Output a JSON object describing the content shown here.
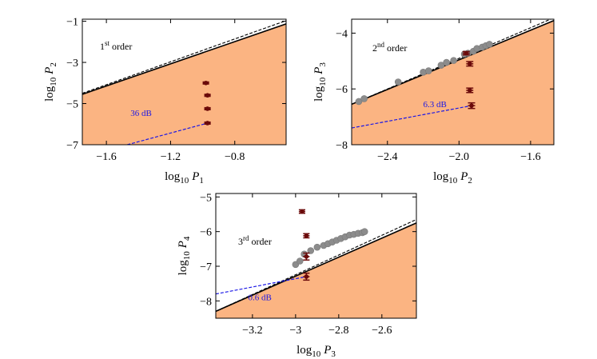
{
  "colors": {
    "region": "#fbb482",
    "bound_solid": "#000000",
    "bound_dashed": "#000000",
    "annotation": "#1a17e6",
    "exp_marker": "#6b0a0a",
    "sim_marker": "#8c8c8c"
  },
  "chart_data": [
    {
      "type": "scatter",
      "title": "1st order",
      "order_num": "1",
      "order_sup": "st",
      "order_word": "order",
      "xlabel_prefix": "log",
      "xlabel_sub": "10",
      "xlabel_var": "P",
      "xlabel_var_sub": "1",
      "ylabel_prefix": "log",
      "ylabel_sub": "10",
      "ylabel_var": "P",
      "ylabel_var_sub": "2",
      "xlim": [
        -1.75,
        -0.48
      ],
      "ylim": [
        -7,
        -0.9
      ],
      "xticks": [
        -1.6,
        -1.2,
        -0.8
      ],
      "xtick_labels": [
        "−1.6",
        "−1.2",
        "−0.8"
      ],
      "yticks": [
        -7,
        -5,
        -3,
        -1
      ],
      "ytick_labels": [
        "−7",
        "−5",
        "−3",
        "−1"
      ],
      "allowed_region_boundary": {
        "x": [
          -1.75,
          -0.48
        ],
        "y": [
          -4.55,
          -1.13
        ]
      },
      "dashed_bound": {
        "x": [
          -1.75,
          -0.48
        ],
        "y": [
          -4.5,
          -0.97
        ]
      },
      "experimental_points": [
        {
          "x": -0.98,
          "y": -4.0,
          "xerr": 0.02,
          "yerr": 0.05
        },
        {
          "x": -0.97,
          "y": -4.6,
          "xerr": 0.02,
          "yerr": 0.05
        },
        {
          "x": -0.97,
          "y": -5.25,
          "xerr": 0.02,
          "yerr": 0.05
        },
        {
          "x": -0.97,
          "y": -5.95,
          "xerr": 0.02,
          "yerr": 0.05
        }
      ],
      "simulated_points": [],
      "gap_line": {
        "x": [
          -1.47,
          -0.97
        ],
        "y": [
          -7.0,
          -5.95
        ]
      },
      "gap_label": "36 dB",
      "gap_label_pos": [
        -1.45,
        -5.6
      ]
    },
    {
      "type": "scatter",
      "title": "2nd order",
      "order_num": "2",
      "order_sup": "nd",
      "order_word": "order",
      "xlabel_prefix": "log",
      "xlabel_sub": "10",
      "xlabel_var": "P",
      "xlabel_var_sub": "2",
      "ylabel_prefix": "log",
      "ylabel_sub": "10",
      "ylabel_var": "P",
      "ylabel_var_sub": "3",
      "xlim": [
        -2.6,
        -1.47
      ],
      "ylim": [
        -8,
        -3.5
      ],
      "xticks": [
        -2.4,
        -2.0,
        -1.6
      ],
      "xtick_labels": [
        "−2.4",
        "−2.0",
        "−1.6"
      ],
      "yticks": [
        -8,
        -6,
        -4
      ],
      "ytick_labels": [
        "−8",
        "−6",
        "−4"
      ],
      "allowed_region_boundary": {
        "x": [
          -2.6,
          -1.47
        ],
        "y": [
          -6.55,
          -3.55
        ]
      },
      "dashed_bound": {
        "x": [
          -2.6,
          -1.47
        ],
        "y": [
          -6.55,
          -3.45
        ]
      },
      "experimental_points": [
        {
          "x": -1.96,
          "y": -4.72,
          "xerr": 0.02,
          "yerr": 0.06
        },
        {
          "x": -1.94,
          "y": -5.1,
          "xerr": 0.02,
          "yerr": 0.08
        },
        {
          "x": -1.94,
          "y": -6.05,
          "xerr": 0.02,
          "yerr": 0.08
        },
        {
          "x": -1.93,
          "y": -6.6,
          "xerr": 0.02,
          "yerr": 0.1
        }
      ],
      "simulated_points": {
        "x": [
          -2.56,
          -2.53,
          -2.34,
          -2.2,
          -2.17,
          -2.1,
          -2.07,
          -2.03,
          -1.97,
          -1.95,
          -1.92,
          -1.9,
          -1.87,
          -1.85,
          -1.83
        ],
        "y": [
          -6.45,
          -6.35,
          -5.75,
          -5.4,
          -5.35,
          -5.15,
          -5.05,
          -4.98,
          -4.75,
          -4.72,
          -4.65,
          -4.55,
          -4.5,
          -4.45,
          -4.4
        ]
      },
      "gap_line": {
        "x": [
          -2.6,
          -1.93
        ],
        "y": [
          -7.4,
          -6.6
        ]
      },
      "gap_label": "6.3 dB",
      "gap_label_pos": [
        -2.2,
        -6.65
      ]
    },
    {
      "type": "scatter",
      "title": "3rd order",
      "order_num": "3",
      "order_sup": "rd",
      "order_word": "order",
      "xlabel_prefix": "log",
      "xlabel_sub": "10",
      "xlabel_var": "P",
      "xlabel_var_sub": "3",
      "ylabel_prefix": "log",
      "ylabel_sub": "10",
      "ylabel_var": "P",
      "ylabel_var_sub": "4",
      "xlim": [
        -3.37,
        -2.44
      ],
      "ylim": [
        -8.5,
        -4.9
      ],
      "xticks": [
        -3.2,
        -2.8,
        -2.6
      ],
      "xtick_labels": [
        "−3.2",
        "−2.8",
        "−2.6"
      ],
      "extra_xtick": {
        "value": -3.0,
        "label": "−3"
      },
      "yticks": [
        -8,
        -7,
        -6,
        -5
      ],
      "ytick_labels": [
        "−8",
        "−7",
        "−6",
        "−5"
      ],
      "allowed_region_boundary": {
        "x": [
          -3.37,
          -2.44
        ],
        "y": [
          -8.3,
          -5.75
        ]
      },
      "dashed_bound": {
        "x": [
          -3.37,
          -2.44
        ],
        "y": [
          -8.3,
          -5.65
        ]
      },
      "experimental_points": [
        {
          "x": -2.97,
          "y": -5.42,
          "xerr": 0.015,
          "yerr": 0.05
        },
        {
          "x": -2.95,
          "y": -6.12,
          "xerr": 0.015,
          "yerr": 0.06
        },
        {
          "x": -2.95,
          "y": -6.72,
          "xerr": 0.015,
          "yerr": 0.1
        },
        {
          "x": -2.95,
          "y": -7.3,
          "xerr": 0.015,
          "yerr": 0.1
        }
      ],
      "simulated_points": {
        "x": [
          -3.0,
          -2.98,
          -2.96,
          -2.93,
          -2.9,
          -2.87,
          -2.85,
          -2.83,
          -2.81,
          -2.79,
          -2.77,
          -2.75,
          -2.73,
          -2.71,
          -2.69,
          -2.68
        ],
        "y": [
          -6.95,
          -6.85,
          -6.65,
          -6.55,
          -6.45,
          -6.4,
          -6.35,
          -6.3,
          -6.25,
          -6.2,
          -6.15,
          -6.1,
          -6.08,
          -6.05,
          -6.03,
          -6.0
        ]
      },
      "gap_line": {
        "x": [
          -3.37,
          -2.95
        ],
        "y": [
          -7.8,
          -7.3
        ]
      },
      "gap_label": "0.6 dB",
      "gap_label_pos": [
        -3.22,
        -7.98
      ]
    }
  ]
}
